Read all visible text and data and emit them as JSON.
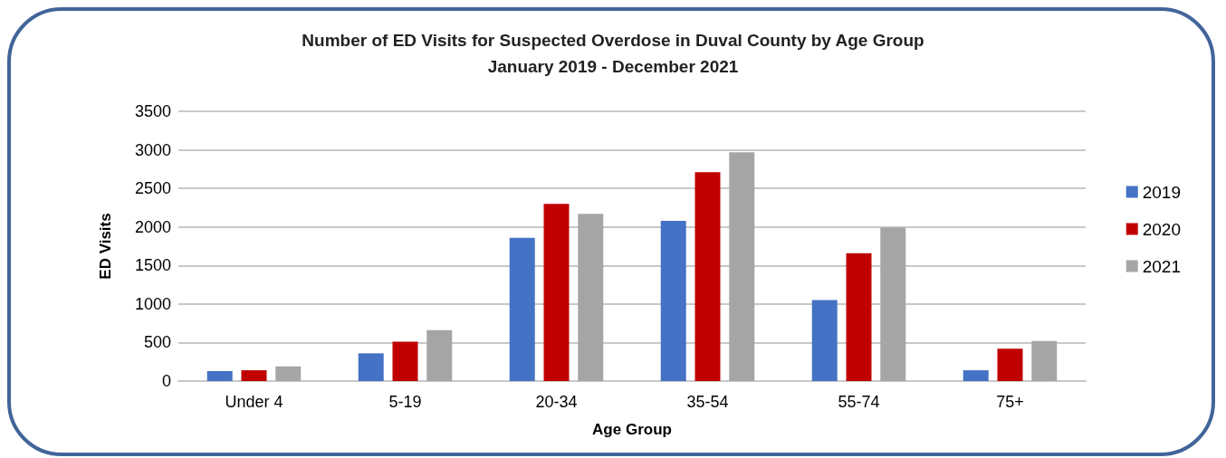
{
  "chart_data": {
    "type": "bar",
    "title": "Number of ED Visits for Suspected Overdose in Duval County by Age Group",
    "subtitle": "January 2019 - December 2021",
    "xlabel": "Age Group",
    "ylabel": "ED Visits",
    "categories": [
      "Under 4",
      "5-19",
      "20-34",
      "35-54",
      "55-74",
      "75+"
    ],
    "series": [
      {
        "name": "2019",
        "color": "#4472c4",
        "values": [
          130,
          360,
          1860,
          2080,
          1050,
          140
        ]
      },
      {
        "name": "2020",
        "color": "#c00000",
        "values": [
          140,
          510,
          2300,
          2710,
          1660,
          420
        ]
      },
      {
        "name": "2021",
        "color": "#a5a5a5",
        "values": [
          190,
          660,
          2170,
          2970,
          1990,
          520
        ]
      }
    ],
    "ylim": [
      0,
      3500
    ],
    "yticks": [
      0,
      500,
      1000,
      1500,
      2000,
      2500,
      3000,
      3500
    ],
    "grid": "y",
    "legend": "right"
  }
}
